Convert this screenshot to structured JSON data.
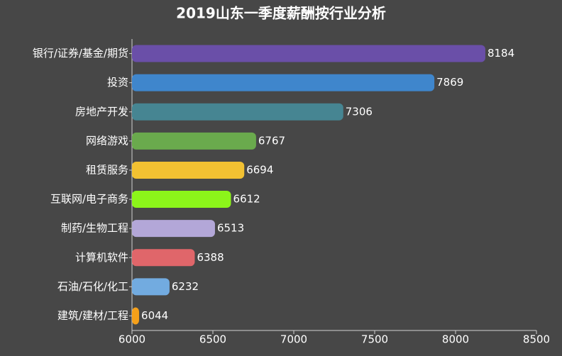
{
  "chart_data": {
    "type": "hbar",
    "title": "2019山东一季度薪酬按行业分析",
    "categories": [
      "银行/证券/基金/期货",
      "投资",
      "房地产开发",
      "网络游戏",
      "租赁服务",
      "互联网/电子商务",
      "制药/生物工程",
      "计算机软件",
      "石油/石化/化工",
      "建筑/建材/工程"
    ],
    "values": [
      8184,
      7869,
      7306,
      6767,
      6694,
      6612,
      6513,
      6388,
      6232,
      6044
    ],
    "colors": [
      "#6a4fa8",
      "#3f86cc",
      "#468592",
      "#6aaa4d",
      "#f2c132",
      "#8cf51a",
      "#b3a7d8",
      "#e0666a",
      "#72abe0",
      "#f5a01a"
    ],
    "xlim": [
      6000,
      8500
    ],
    "xticks": [
      6000,
      6500,
      7000,
      7500,
      8000,
      8500
    ]
  }
}
